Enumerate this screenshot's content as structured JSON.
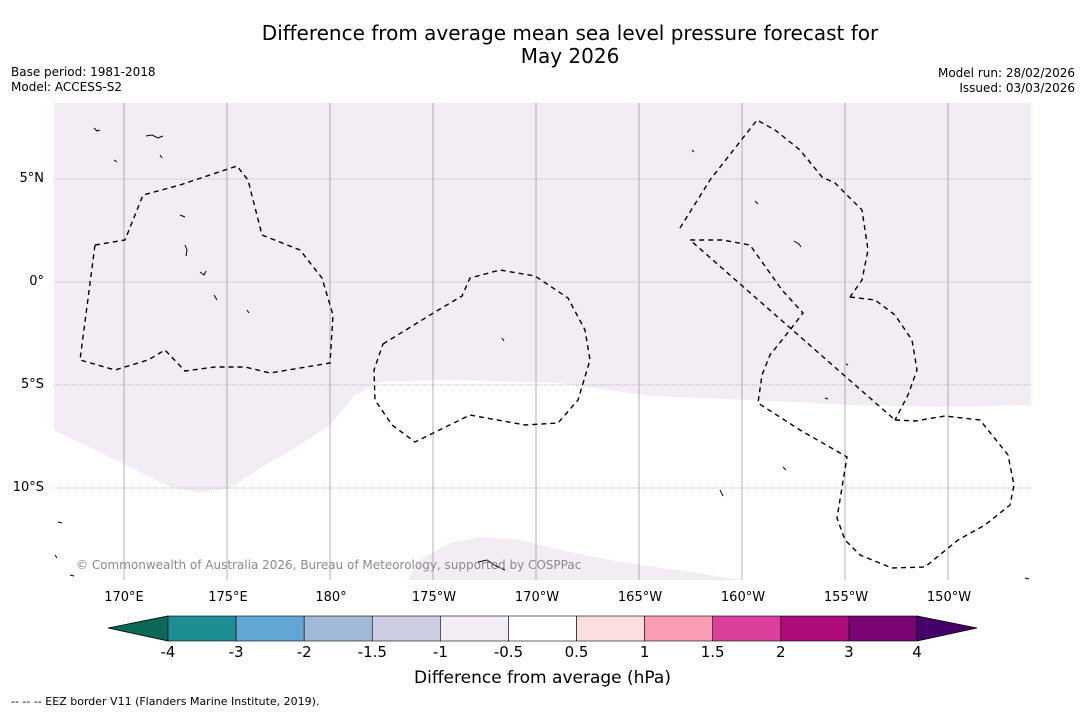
{
  "title": {
    "line1": "Difference from average mean sea level pressure forecast for",
    "line2": "May 2026"
  },
  "meta_left": {
    "base_period": "Base period: 1981-2018",
    "model": "Model: ACCESS-S2"
  },
  "meta_right": {
    "model_run": "Model run: 28/02/2026",
    "issued": "Issued: 03/03/2026"
  },
  "map": {
    "latitude_labels": [
      "5°N",
      "0°",
      "5°S",
      "10°S"
    ],
    "longitude_labels": [
      "170°E",
      "175°E",
      "180°",
      "175°W",
      "170°W",
      "165°W",
      "160°W",
      "155°W",
      "150°W"
    ],
    "copyright": "© Commonwealth of Australia 2026, Bureau of Meteorology, supported by COSPPac",
    "fill_color": "#f3ecf5",
    "border_color": "#000000"
  },
  "colorbar": {
    "title": "Difference from average (hPa)",
    "tick_labels": [
      "-4",
      "-3",
      "-2",
      "-1.5",
      "-1",
      "-0.5",
      "0.5",
      "1",
      "1.5",
      "2",
      "3",
      "4"
    ],
    "colors": [
      "#1c8e94",
      "#62a6d3",
      "#a3b9d8",
      "#cdcde3",
      "#f3ecf5",
      "#ffffff",
      "#fddede",
      "#f89db4",
      "#dc3f9c",
      "#ad0b7a",
      "#7b0474"
    ],
    "low_extend_color": "#0c6857",
    "high_extend_color": "#46006a"
  },
  "footnote": "--  --  -- EEZ border V11 (Flanders Marine Institute, 2019)."
}
